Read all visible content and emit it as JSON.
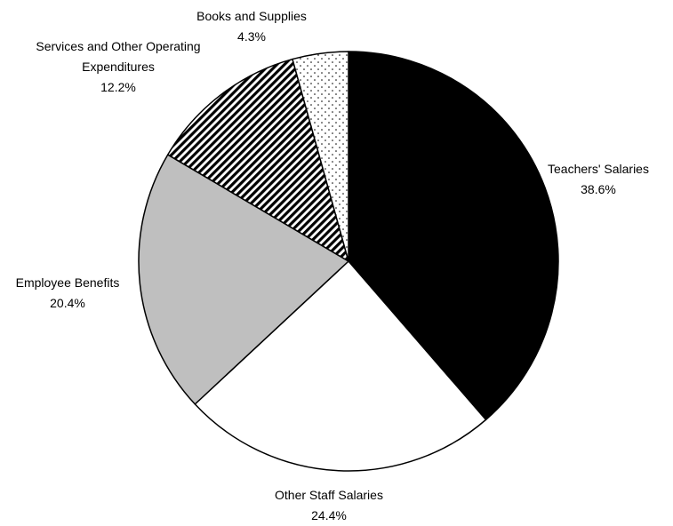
{
  "chart_data": {
    "type": "pie",
    "categories": [
      "Teachers' Salaries",
      "Other Staff Salaries",
      "Employee Benefits",
      "Services and Other Operating Expenditures",
      "Books and Supplies"
    ],
    "values": [
      38.6,
      24.4,
      20.4,
      12.2,
      4.3
    ],
    "value_labels": [
      "38.6%",
      "24.4%",
      "20.4%",
      "12.2%",
      "4.3%"
    ],
    "colors": [
      "#000000",
      "#ffffff",
      "#bfbfbf",
      "#000000",
      "#000000"
    ],
    "patterns": [
      "solid",
      "solid",
      "solid",
      "stripes",
      "dots"
    ]
  }
}
